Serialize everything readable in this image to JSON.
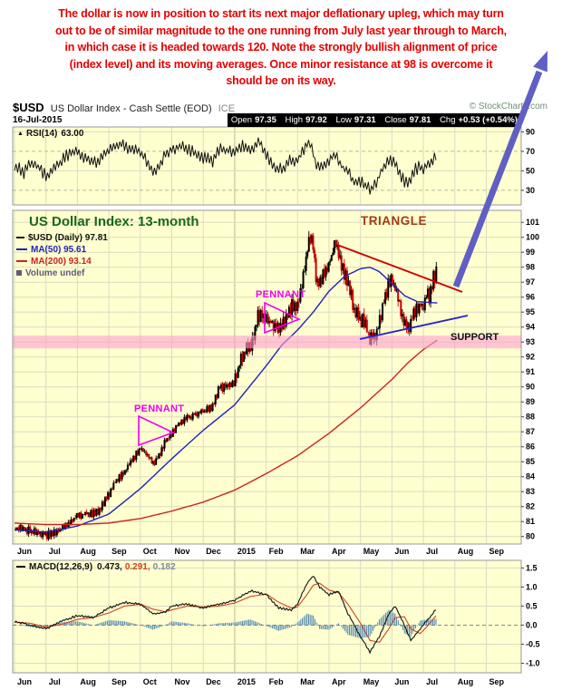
{
  "annotation": {
    "lines": [
      "The dollar is now in position to start its next major deflationary upleg, which may turn",
      "out to be of similar magnitude to the one running from July last year through to March,",
      "in which case it is headed towards 120. Note the strongly bullish alignment of price",
      "(index level) and its moving averages. Once minor resistance at 98 is overcome it",
      "should be on its way."
    ]
  },
  "header": {
    "symbol": "$USD",
    "title": "US Dollar Index - Cash Settle (EOD)",
    "exchange": "ICE",
    "copyright": "© StockCharts.com",
    "date": "16-Jul-2015",
    "quote": [
      {
        "label": "Open",
        "value": "97.35"
      },
      {
        "label": "High",
        "value": "97.92"
      },
      {
        "label": "Low",
        "value": "97.31"
      },
      {
        "label": "Close",
        "value": "97.81"
      },
      {
        "label": "Chg",
        "value": "+0.53 (+0.54%)"
      }
    ]
  },
  "rsi_panel": {
    "icon": "▲",
    "label": "RSI(14)",
    "value": "63.00"
  },
  "main_panel": {
    "title": "US Dollar Index: 13-month",
    "triangle_label": "TRIANGLE",
    "legend_symbol": "$USD (Daily) 97.81",
    "legend_ma50": "MA(50) 95.61",
    "legend_ma200": "MA(200) 93.14",
    "legend_volume": "Volume undef",
    "support_label": "SUPPORT",
    "pennant_label_1": "PENNANT",
    "pennant_label_2": "PENNANT"
  },
  "macd_panel": {
    "label": "MACD(12,26,9)",
    "value_macd": "0.473,",
    "value_signal": "0.291,",
    "value_hist": "0.182"
  },
  "xaxis": {
    "labels": [
      "Jun",
      "Jul",
      "Aug",
      "Sep",
      "Oct",
      "Nov",
      "Dec",
      "2015",
      "Feb",
      "Mar",
      "Apr",
      "May",
      "Jun",
      "Jul",
      "Aug",
      "Sep"
    ]
  },
  "colors": {
    "annotation_red": "#E60000",
    "title_green": "#186818",
    "triangle_brown": "#A03D10",
    "pennant_magenta": "#EE00EE",
    "support_pink": "#FF9FD2",
    "arrow_blue": "#5F5FC4",
    "ma50_blue": "#2222BB",
    "ma200_red": "#CC2222",
    "candle_up": "#000000",
    "candle_down": "#CC0000",
    "rsi_line": "#111111",
    "macd_line": "#111111",
    "panel_bg": "#FFFFCF",
    "panel_border": "#999999",
    "grid": "#DBDBC3",
    "grid_dark": "#B9B9A0",
    "macd_hist": "#4E86B0",
    "macd_signal_red": "#CC4422",
    "macd_hist_label": "#7C8CA0",
    "volume_label": "#605880",
    "copyright_green": "#6F8F6F",
    "quote_bg": "#000000",
    "quote_text": "#FFFFFF",
    "triangle_line_red": "#CC0000",
    "triangle_line_blue": "#2222CC"
  },
  "chart_data": [
    {
      "panel": "RSI",
      "type": "line",
      "title": "RSI(14)",
      "last_value": 63.0,
      "ylim": [
        15,
        95
      ],
      "yticks": [
        "90",
        "70",
        "50",
        "30"
      ],
      "x_unit": "months from Jun 2014",
      "series": [
        {
          "name": "RSI(14)",
          "x": [
            0,
            0.3,
            0.6,
            1.0,
            1.3,
            1.6,
            2.0,
            2.3,
            2.6,
            3.0,
            3.3,
            3.6,
            4.0,
            4.2,
            4.4,
            4.6,
            4.8,
            5.0,
            5.3,
            5.6,
            6.0,
            6.3,
            6.5,
            7.0,
            7.3,
            7.6,
            7.8,
            8.0,
            8.2,
            8.5,
            8.8,
            9.0,
            9.2,
            9.4,
            9.6,
            9.8,
            10.0,
            10.2,
            10.4,
            10.6,
            10.8,
            11.0,
            11.2,
            11.35,
            11.5,
            11.7,
            11.9,
            12.05,
            12.2,
            12.4,
            12.55,
            12.7,
            12.9,
            13.0,
            13.1,
            13.3,
            13.45
          ],
          "values": [
            55,
            48,
            60,
            45,
            52,
            65,
            70,
            62,
            58,
            72,
            78,
            74,
            70,
            60,
            48,
            56,
            68,
            72,
            74,
            70,
            64,
            60,
            72,
            70,
            76,
            72,
            80,
            66,
            54,
            52,
            62,
            60,
            72,
            80,
            54,
            56,
            62,
            68,
            55,
            48,
            38,
            40,
            34,
            30,
            38,
            52,
            62,
            60,
            50,
            38,
            40,
            50,
            55,
            52,
            58,
            62,
            63
          ]
        }
      ]
    },
    {
      "panel": "price",
      "type": "candlestick",
      "title": "US Dollar Index: 13-month",
      "ylim": [
        79.5,
        101.8
      ],
      "yticks": [
        "101",
        "100",
        "99",
        "98",
        "97",
        "96",
        "95",
        "94",
        "93",
        "92",
        "91",
        "90",
        "89",
        "88",
        "87",
        "86",
        "85",
        "84",
        "83",
        "82",
        "81",
        "80"
      ],
      "support_level": 93,
      "ohlc_last": {
        "open": 97.35,
        "high": 97.92,
        "low": 97.31,
        "close": 97.81,
        "change": "+0.53 (+0.54%)"
      },
      "x_unit": "months from Jun 2014",
      "annotations": [
        "TRIANGLE",
        "PENNANT",
        "PENNANT",
        "SUPPORT"
      ],
      "series": [
        {
          "name": "$USD close",
          "x": [
            0,
            0.25,
            0.5,
            0.75,
            1.0,
            1.25,
            1.5,
            1.75,
            2.0,
            2.3,
            2.6,
            2.8,
            3.0,
            3.25,
            3.5,
            3.75,
            4.0,
            4.2,
            4.4,
            4.6,
            4.8,
            5.0,
            5.25,
            5.5,
            5.75,
            6.0,
            6.3,
            6.5,
            6.75,
            7.0,
            7.25,
            7.5,
            7.75,
            8.0,
            8.2,
            8.4,
            8.6,
            8.8,
            9.0,
            9.2,
            9.4,
            9.5,
            9.6,
            9.8,
            10.0,
            10.2,
            10.4,
            10.6,
            10.8,
            11.0,
            11.15,
            11.3,
            11.5,
            11.7,
            11.9,
            12.05,
            12.2,
            12.4,
            12.55,
            12.7,
            12.9,
            13.0,
            13.1,
            13.2,
            13.3,
            13.45
          ],
          "values": [
            80.6,
            80.5,
            80.4,
            80.3,
            80.1,
            80.2,
            80.5,
            81.0,
            81.4,
            81.5,
            81.6,
            82.1,
            82.8,
            83.8,
            84.4,
            85.2,
            85.9,
            85.6,
            84.9,
            85.4,
            86.4,
            86.9,
            87.6,
            87.9,
            88.2,
            88.4,
            88.7,
            89.9,
            90.0,
            90.3,
            92.2,
            92.7,
            94.8,
            94.6,
            94.2,
            94.1,
            94.4,
            95.3,
            95.4,
            97.7,
            100.2,
            99.6,
            97.1,
            97.4,
            98.3,
            99.5,
            98.0,
            97.0,
            95.1,
            94.6,
            94.1,
            93.3,
            93.7,
            95.3,
            96.9,
            97.0,
            95.9,
            94.1,
            93.8,
            95.1,
            95.6,
            95.5,
            96.3,
            96.0,
            97.2,
            97.8
          ]
        },
        {
          "name": "MA(50)",
          "last": 95.61,
          "x": [
            0,
            1,
            2,
            3,
            4,
            5,
            6,
            7,
            8,
            8.5,
            9,
            9.5,
            10,
            10.5,
            11,
            11.3,
            11.6,
            12,
            12.4,
            12.8,
            13.45
          ],
          "values": [
            80.45,
            80.3,
            80.7,
            81.5,
            83.2,
            85.2,
            87.1,
            88.8,
            91.4,
            92.8,
            93.8,
            95.0,
            96.4,
            97.4,
            97.9,
            98.0,
            97.7,
            96.9,
            96.1,
            95.7,
            95.61
          ]
        },
        {
          "name": "MA(200)",
          "last": 93.14,
          "x": [
            0,
            1,
            2,
            3,
            4,
            5,
            6,
            7,
            8,
            9,
            10,
            11,
            12,
            12.5,
            13,
            13.45
          ],
          "values": [
            80.9,
            80.8,
            80.8,
            80.9,
            81.2,
            81.7,
            82.3,
            83.1,
            84.2,
            85.4,
            86.9,
            88.6,
            90.5,
            91.6,
            92.5,
            93.14
          ]
        }
      ]
    },
    {
      "panel": "MACD",
      "type": "line+histogram",
      "title": "MACD(12,26,9)",
      "last_values": {
        "macd": 0.473,
        "signal": 0.291,
        "hist": 0.182
      },
      "ylim": [
        -1.25,
        1.7
      ],
      "yticks": [
        "1.5",
        "1.0",
        "0.5",
        "0.0",
        "-0.5",
        "-1.0"
      ],
      "x_unit": "months from Jun 2014",
      "series": [
        {
          "name": "MACD line",
          "x": [
            0,
            0.5,
            1,
            1.5,
            2,
            2.5,
            3,
            3.5,
            4,
            4.4,
            4.8,
            5,
            5.5,
            6,
            6.5,
            7,
            7.5,
            8,
            8.4,
            8.8,
            9,
            9.3,
            9.5,
            9.7,
            10,
            10.3,
            10.6,
            11,
            11.3,
            11.6,
            11.9,
            12.1,
            12.4,
            12.6,
            12.9,
            13.1,
            13.3,
            13.45
          ],
          "values": [
            0.1,
            0.0,
            -0.1,
            0.1,
            0.25,
            0.2,
            0.45,
            0.6,
            0.55,
            0.3,
            0.35,
            0.5,
            0.55,
            0.45,
            0.55,
            0.65,
            0.9,
            0.8,
            0.45,
            0.4,
            0.55,
            1.1,
            1.3,
            1.0,
            0.8,
            0.9,
            0.3,
            -0.3,
            -0.7,
            -0.3,
            0.3,
            0.5,
            0.0,
            -0.4,
            -0.1,
            0.1,
            0.3,
            0.473
          ]
        },
        {
          "name": "Signal line",
          "x": [
            0,
            0.5,
            1,
            1.5,
            2,
            2.5,
            3,
            3.5,
            4,
            4.4,
            4.8,
            5,
            5.5,
            6,
            6.5,
            7,
            7.5,
            8,
            8.4,
            8.8,
            9,
            9.3,
            9.5,
            9.7,
            10,
            10.3,
            10.6,
            11,
            11.3,
            11.6,
            11.9,
            12.1,
            12.4,
            12.6,
            12.9,
            13.1,
            13.3,
            13.45
          ],
          "values": [
            0.08,
            0.05,
            -0.05,
            0.02,
            0.15,
            0.2,
            0.32,
            0.5,
            0.55,
            0.42,
            0.35,
            0.4,
            0.5,
            0.48,
            0.5,
            0.58,
            0.75,
            0.82,
            0.6,
            0.45,
            0.48,
            0.8,
            1.05,
            1.1,
            0.92,
            0.85,
            0.55,
            0.05,
            -0.4,
            -0.45,
            -0.1,
            0.2,
            0.22,
            -0.1,
            -0.22,
            -0.05,
            0.15,
            0.291
          ]
        }
      ]
    }
  ]
}
